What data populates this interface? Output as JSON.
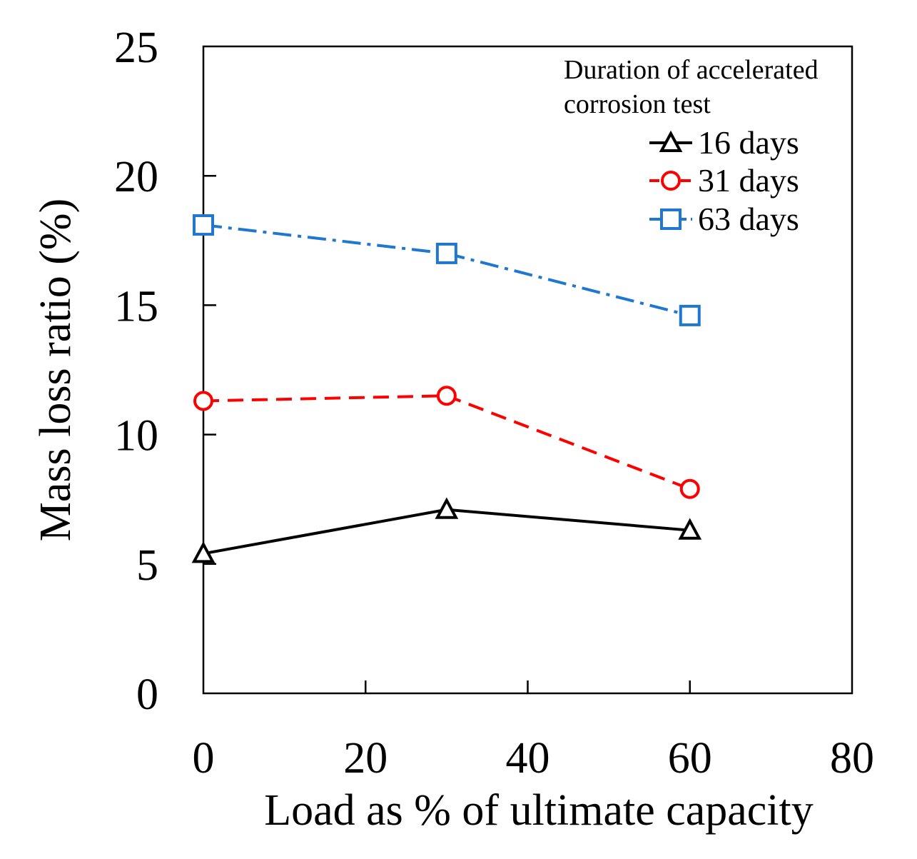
{
  "chart_data": {
    "type": "line",
    "title": "",
    "xlabel": "Load as % of ultimate capacity",
    "ylabel": "Mass loss ratio (%)",
    "xlim": [
      0,
      80
    ],
    "ylim": [
      0,
      25
    ],
    "xticks": [
      0,
      20,
      40,
      60,
      80
    ],
    "yticks": [
      0,
      5,
      10,
      15,
      20,
      25
    ],
    "x_tick_labels": [
      "0",
      "20",
      "40",
      "60",
      "80"
    ],
    "y_tick_labels": [
      "0",
      "5",
      "10",
      "15",
      "20",
      "25"
    ],
    "grid": false,
    "legend": {
      "title_line1": "Duration of accelerated",
      "title_line2": "corrosion test",
      "position": "top-right"
    },
    "x": [
      0,
      30,
      60
    ],
    "series": [
      {
        "name": "16 days",
        "values": [
          5.4,
          7.1,
          6.3
        ],
        "color": "#000000",
        "marker": "triangle",
        "dash": "solid"
      },
      {
        "name": "31 days",
        "values": [
          11.3,
          11.5,
          7.9
        ],
        "color": "#ff0000",
        "marker": "circle",
        "dash": "dashed"
      },
      {
        "name": "63 days",
        "values": [
          18.1,
          17.0,
          14.6
        ],
        "color": "#1f77d0",
        "marker": "square",
        "dash": "dashdot"
      }
    ]
  }
}
